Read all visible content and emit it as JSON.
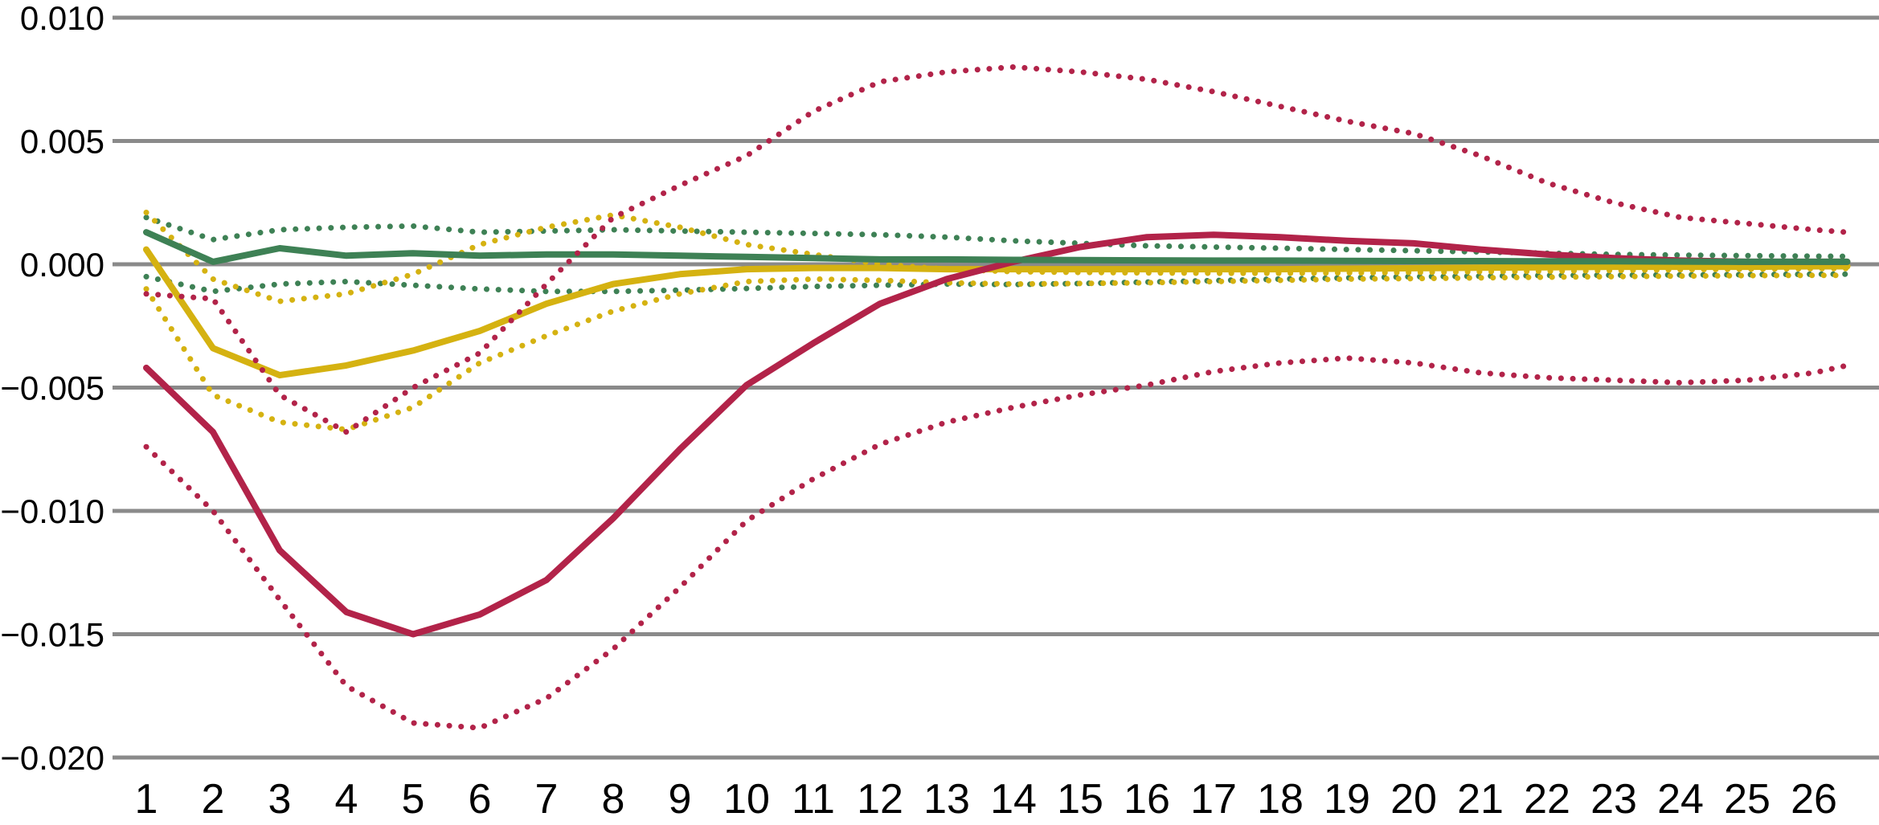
{
  "chart_data": {
    "type": "line",
    "title": "",
    "xlabel": "",
    "ylabel": "",
    "grid": true,
    "legend": "none",
    "background_color": "#ffffff",
    "gridline_color": "#8a8a8a",
    "tick_text_color": "#000000",
    "x_ticks": [
      1,
      2,
      3,
      4,
      5,
      6,
      7,
      8,
      9,
      10,
      11,
      12,
      13,
      14,
      15,
      16,
      17,
      18,
      19,
      20,
      21,
      22,
      23,
      24,
      25,
      26
    ],
    "y_ticks": [
      0.01,
      0.005,
      0.0,
      -0.005,
      -0.01,
      -0.015,
      -0.02
    ],
    "y_tick_labels": [
      "0.010",
      "0.005",
      "0.000",
      "−0.005",
      "−0.010",
      "−0.015",
      "−0.020"
    ],
    "ylim": [
      -0.0205,
      0.0107
    ],
    "xlim": [
      1,
      26.5
    ],
    "x": [
      1,
      2,
      3,
      4,
      5,
      6,
      7,
      8,
      9,
      10,
      11,
      12,
      13,
      14,
      15,
      16,
      17,
      18,
      19,
      20,
      21,
      22,
      23,
      24,
      25,
      26,
      26.5
    ],
    "series": [
      {
        "name": "green-upper-band",
        "color": "#3E8155",
        "style": "dotted",
        "values": [
          0.0019,
          0.001,
          0.0014,
          0.0015,
          0.00155,
          0.0013,
          0.00135,
          0.0014,
          0.00135,
          0.0013,
          0.00125,
          0.0012,
          0.0011,
          0.00095,
          0.00085,
          0.00075,
          0.0007,
          0.00065,
          0.0006,
          0.00055,
          0.0005,
          0.00045,
          0.0004,
          0.00037,
          0.00035,
          0.00033,
          0.00032
        ]
      },
      {
        "name": "green-lower-band",
        "color": "#3E8155",
        "style": "dotted",
        "values": [
          -0.0005,
          -0.0011,
          -0.0008,
          -0.0007,
          -0.00085,
          -0.001,
          -0.0011,
          -0.0011,
          -0.00105,
          -0.00098,
          -0.0009,
          -0.00085,
          -0.0008,
          -0.00082,
          -0.00078,
          -0.00072,
          -0.00066,
          -0.0006,
          -0.00055,
          -0.0005,
          -0.00048,
          -0.00045,
          -0.00044,
          -0.00043,
          -0.00042,
          -0.0004,
          -0.0004
        ]
      },
      {
        "name": "yellow-upper-band",
        "color": "#D5B211",
        "style": "dotted",
        "values": [
          0.0021,
          -0.0006,
          -0.0015,
          -0.0012,
          -0.0004,
          0.0008,
          0.0015,
          0.002,
          0.0015,
          0.0008,
          0.0004,
          0.0,
          -0.0002,
          -0.0003,
          -0.00033,
          -0.00035,
          -0.00036,
          -0.00036,
          -0.00035,
          -0.00033,
          -0.0003,
          -0.00028,
          -0.00025,
          -0.00022,
          -0.0002,
          -0.00018,
          -0.00017
        ]
      },
      {
        "name": "yellow-lower-band",
        "color": "#D5B211",
        "style": "dotted",
        "values": [
          -0.001,
          -0.0053,
          -0.0064,
          -0.0067,
          -0.0058,
          -0.004,
          -0.0029,
          -0.0019,
          -0.0012,
          -0.0007,
          -0.0006,
          -0.00065,
          -0.00075,
          -0.0008,
          -0.00078,
          -0.00075,
          -0.0007,
          -0.00065,
          -0.0006,
          -0.00058,
          -0.00055,
          -0.00052,
          -0.0005,
          -0.00048,
          -0.00046,
          -0.00045,
          -0.00045
        ]
      },
      {
        "name": "yellow-mean",
        "color": "#D5B211",
        "style": "solid",
        "values": [
          0.0006,
          -0.0034,
          -0.0045,
          -0.0041,
          -0.0035,
          -0.0027,
          -0.0016,
          -0.0008,
          -0.0004,
          -0.0002,
          -0.00015,
          -0.00015,
          -0.0002,
          -0.0002,
          -0.0002,
          -0.0002,
          -0.0002,
          -0.0002,
          -0.00018,
          -0.00016,
          -0.00014,
          -0.00012,
          -0.0001,
          -0.0001,
          -0.0001,
          -8e-05,
          -8e-05
        ]
      },
      {
        "name": "crimson-mean",
        "color": "#B22349",
        "style": "solid",
        "values": [
          -0.0042,
          -0.0068,
          -0.0116,
          -0.0141,
          -0.015,
          -0.0142,
          -0.0128,
          -0.0103,
          -0.0075,
          -0.0049,
          -0.0032,
          -0.0016,
          -0.0006,
          0.0001,
          0.0007,
          0.0011,
          0.0012,
          0.0011,
          0.00095,
          0.00085,
          0.0006,
          0.0004,
          0.00025,
          0.00015,
          0.0001,
          0.0001,
          0.0001
        ]
      },
      {
        "name": "green-mean",
        "color": "#3E8155",
        "style": "solid",
        "values": [
          0.0013,
          0.0001,
          0.00065,
          0.00035,
          0.00045,
          0.00035,
          0.0004,
          0.0004,
          0.00035,
          0.0003,
          0.00025,
          0.0002,
          0.0002,
          0.00018,
          0.00017,
          0.00016,
          0.00015,
          0.00015,
          0.00014,
          0.00013,
          0.00013,
          0.00012,
          0.00012,
          0.00011,
          0.0001,
          0.0001,
          0.0001
        ]
      },
      {
        "name": "crimson-upper-band",
        "color": "#B22349",
        "style": "dotted",
        "values": [
          -0.0012,
          -0.0014,
          -0.0053,
          -0.0068,
          -0.005,
          -0.0036,
          -0.0008,
          0.0019,
          0.0032,
          0.0044,
          0.0062,
          0.0074,
          0.0078,
          0.008,
          0.0078,
          0.0075,
          0.007,
          0.0064,
          0.0058,
          0.0053,
          0.0044,
          0.0033,
          0.0025,
          0.0019,
          0.00165,
          0.0014,
          0.0013
        ]
      },
      {
        "name": "crimson-lower-band",
        "color": "#B22349",
        "style": "dotted",
        "values": [
          -0.0074,
          -0.01,
          -0.0136,
          -0.0171,
          -0.0186,
          -0.0188,
          -0.0176,
          -0.0156,
          -0.0131,
          -0.0104,
          -0.0087,
          -0.0073,
          -0.0064,
          -0.0058,
          -0.0053,
          -0.0049,
          -0.00435,
          -0.004,
          -0.0038,
          -0.004,
          -0.0044,
          -0.0046,
          -0.0047,
          -0.0048,
          -0.0047,
          -0.0044,
          -0.0041
        ]
      }
    ]
  }
}
